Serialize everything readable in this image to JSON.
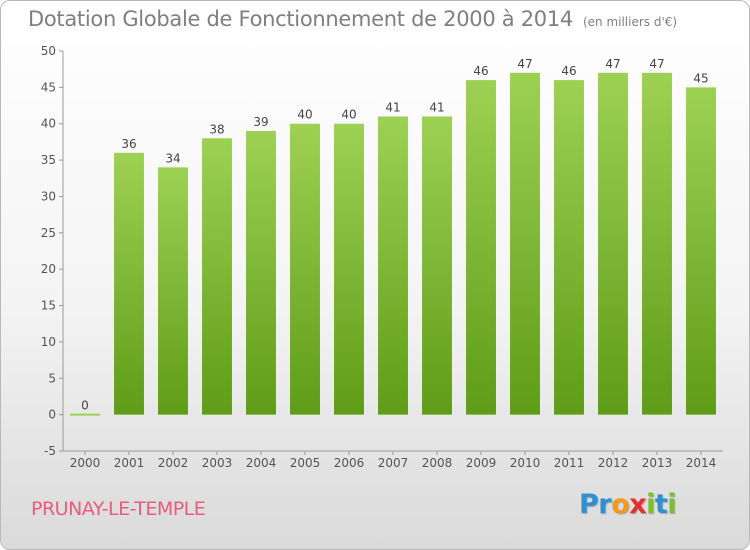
{
  "header": {
    "title": "Dotation Globale de Fonctionnement de 2000 à 2014",
    "unit": "(en milliers d'€)"
  },
  "footer": {
    "commune": "PRUNAY-LE-TEMPLE",
    "logo_letters": [
      "P",
      "r",
      "o",
      "x",
      "i",
      "t",
      "i"
    ]
  },
  "colors": {
    "bar_top": "#9dd153",
    "bar_bottom": "#5f9c17",
    "logo": [
      "#2e8fd3",
      "#2e8fd3",
      "#f39a1e",
      "#e52f2f",
      "#7cbf2e",
      "#2e8fd3",
      "#7cbf2e"
    ]
  },
  "chart_data": {
    "type": "bar",
    "title": "Dotation Globale de Fonctionnement de 2000 à 2014",
    "subtitle": "(en milliers d'€)",
    "categories": [
      "2000",
      "2001",
      "2002",
      "2003",
      "2004",
      "2005",
      "2006",
      "2007",
      "2008",
      "2009",
      "2010",
      "2011",
      "2012",
      "2013",
      "2014"
    ],
    "values": [
      0,
      36,
      34,
      38,
      39,
      40,
      40,
      41,
      41,
      46,
      47,
      46,
      47,
      47,
      45
    ],
    "ylim": [
      -5,
      50
    ],
    "yticks": [
      -5,
      0,
      5,
      10,
      15,
      20,
      25,
      30,
      35,
      40,
      45,
      50
    ],
    "grid": false,
    "xlabel": "",
    "ylabel": ""
  }
}
